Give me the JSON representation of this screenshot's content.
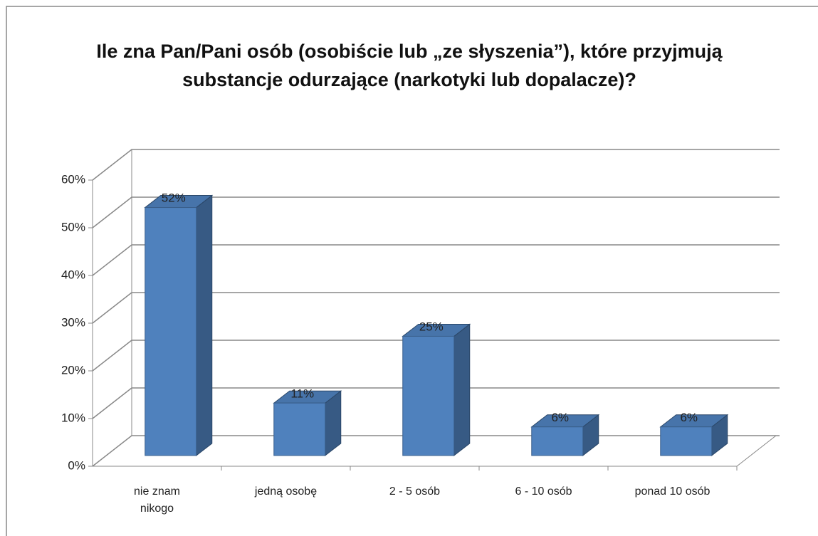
{
  "chart_data": {
    "type": "bar3d",
    "title": "Ile zna Pan/Pani osób (osobiście lub „ze słyszenia”), które przyjmują substancje odurzające (narkotyki lub dopalacze)?",
    "categories": [
      "nie znam nikogo",
      "jedną osobę",
      "2 - 5 osób",
      "6 - 10 osób",
      "ponad 10 osób"
    ],
    "values": [
      52,
      11,
      25,
      6,
      6
    ],
    "value_labels": [
      "52%",
      "11%",
      "25%",
      "6%",
      "6%"
    ],
    "color": "#4f81bd",
    "ylim": [
      0,
      60
    ],
    "yticks": [
      {
        "value": 0,
        "label": "0%"
      },
      {
        "value": 10,
        "label": "10%"
      },
      {
        "value": 20,
        "label": "20%"
      },
      {
        "value": 30,
        "label": "30%"
      },
      {
        "value": 40,
        "label": "40%"
      },
      {
        "value": 50,
        "label": "50%"
      },
      {
        "value": 60,
        "label": "60%"
      }
    ],
    "grid": true
  }
}
